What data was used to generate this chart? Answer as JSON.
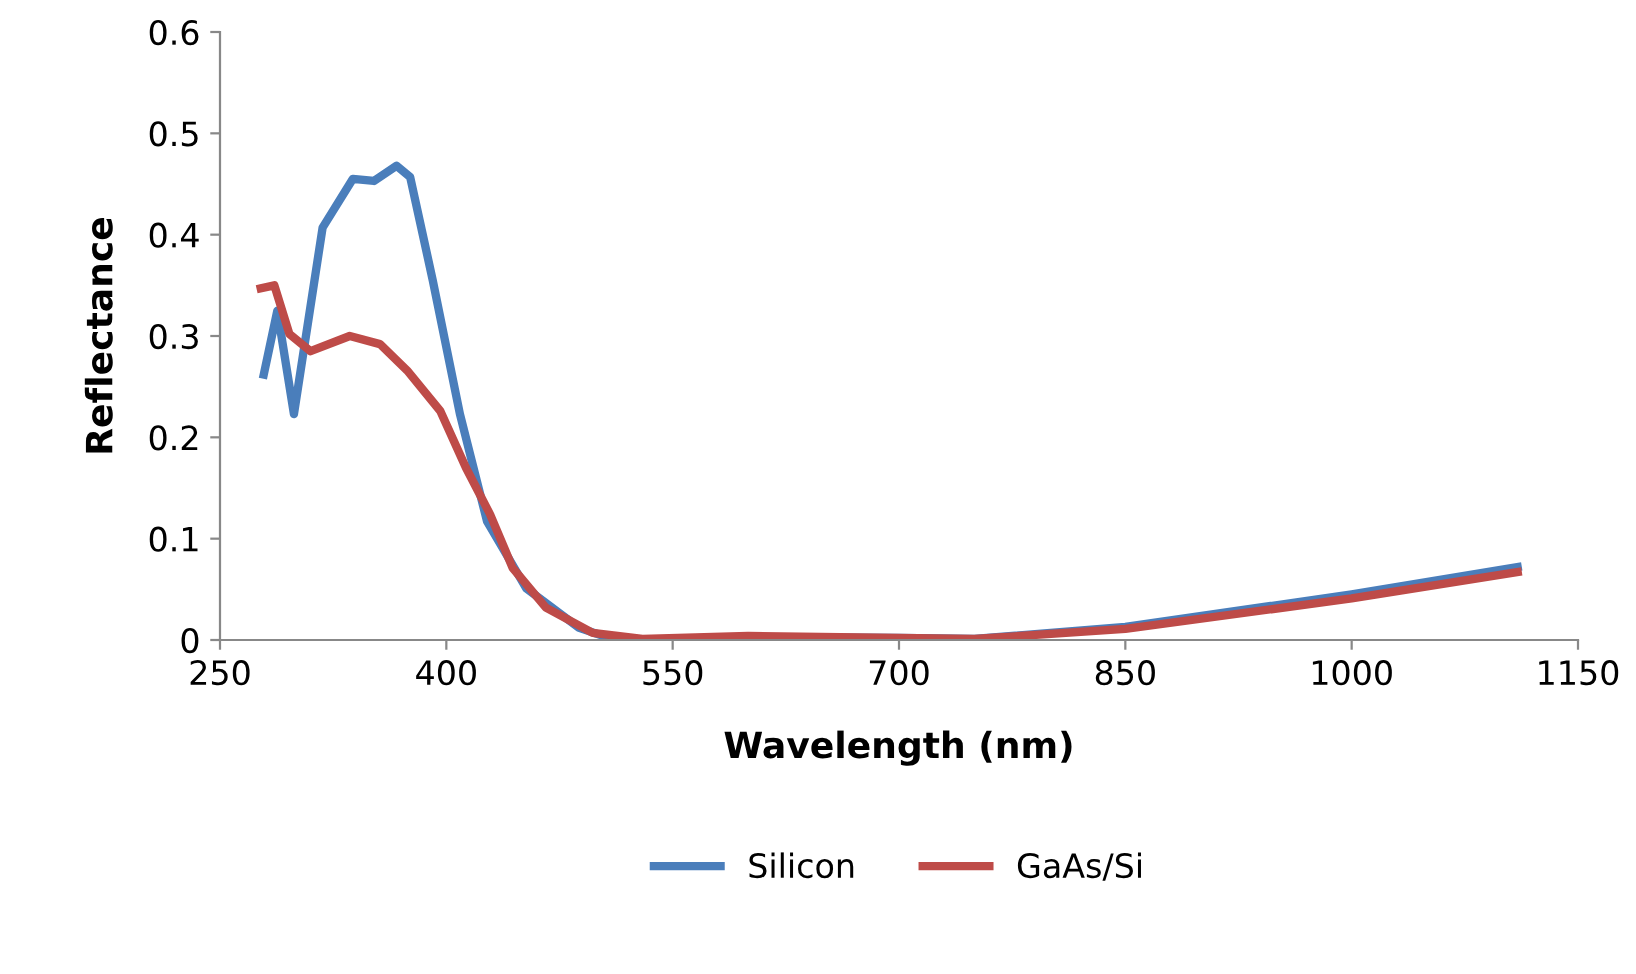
{
  "chart_data": {
    "type": "line",
    "xlabel": "Wavelength (nm)",
    "ylabel": "Reflectance",
    "xlim": [
      250,
      1150
    ],
    "xticks": [
      250,
      400,
      550,
      700,
      850,
      1000,
      1150
    ],
    "ylim": [
      0,
      0.6
    ],
    "yticks": [
      0,
      0.1,
      0.2,
      0.3,
      0.4,
      0.5,
      0.6
    ],
    "grid": false,
    "legend": "bottom",
    "marker": "none",
    "line_style": "solid",
    "series": [
      {
        "name": "Silicon",
        "color": "#4a7ebb",
        "x": [
          279,
          288,
          299,
          318,
          338,
          352,
          367,
          376,
          391,
          409,
          427,
          453,
          488,
          508,
          530,
          600,
          700,
          750,
          850,
          1000,
          1110
        ],
        "values": [
          0.262,
          0.325,
          0.223,
          0.407,
          0.455,
          0.453,
          0.468,
          0.457,
          0.355,
          0.223,
          0.117,
          0.051,
          0.012,
          0.002,
          0.0,
          0.003,
          0.002,
          0.001,
          0.013,
          0.045,
          0.072
        ]
      },
      {
        "name": "GaAs/Si",
        "color": "#be4b48",
        "x": [
          277,
          286,
          296,
          310,
          336,
          356,
          374,
          396,
          413,
          429,
          444,
          466,
          497,
          530,
          600,
          700,
          750,
          850,
          1000,
          1110
        ],
        "values": [
          0.347,
          0.35,
          0.302,
          0.285,
          0.3,
          0.292,
          0.266,
          0.226,
          0.17,
          0.124,
          0.071,
          0.032,
          0.007,
          0.001,
          0.004,
          0.002,
          0.001,
          0.011,
          0.041,
          0.067
        ]
      }
    ]
  }
}
